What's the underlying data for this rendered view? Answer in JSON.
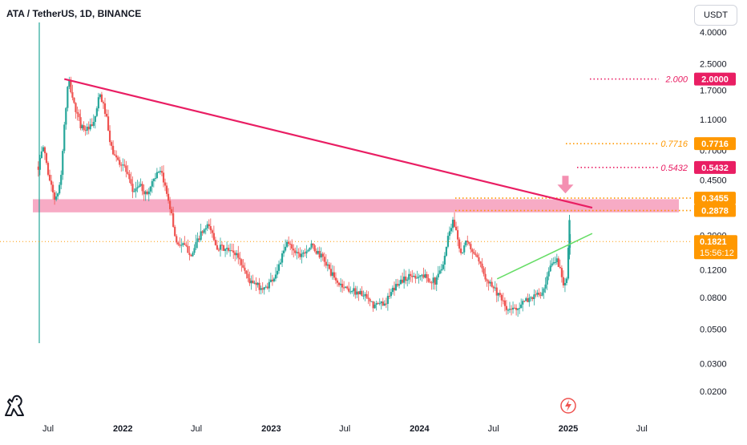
{
  "header": {
    "title": "ATA / TetherUS, 1D, BINANCE"
  },
  "currency_button": {
    "label": "USDT"
  },
  "icons": {
    "logo": "tradingview-dino-icon",
    "event": "lightning-icon",
    "marker": "down-arrow-icon"
  },
  "colors": {
    "up": "#26a69a",
    "down": "#ef5350",
    "trendline": "#e91e63",
    "green_line": "#66dd66",
    "zone": "#f48fb1",
    "orange": "#ff9800",
    "pink_label": "#e91e63",
    "current": "#ff9800"
  },
  "chart_data": {
    "type": "candlestick",
    "symbol": "ATA / TetherUS",
    "interval": "1D",
    "exchange": "BINANCE",
    "y_scale": "log",
    "y_ticks": [
      "4.0000",
      "2.5000",
      "1.7000",
      "1.1000",
      "0.7000",
      "0.4500",
      "0.3000",
      "0.2000",
      "0.1200",
      "0.0800",
      "0.0500",
      "0.0300",
      "0.0200"
    ],
    "x_ticks": [
      "Jul",
      "2022",
      "Jul",
      "2023",
      "Jul",
      "2024",
      "Jul",
      "2025",
      "Jul"
    ],
    "price_path": [
      [
        "2021-06-07",
        0.55
      ],
      [
        "2021-06-20",
        0.75
      ],
      [
        "2021-07-01",
        0.5
      ],
      [
        "2021-07-10",
        0.4
      ],
      [
        "2021-07-20",
        0.33
      ],
      [
        "2021-08-01",
        0.45
      ],
      [
        "2021-08-10",
        1.0
      ],
      [
        "2021-08-20",
        2.0
      ],
      [
        "2021-09-05",
        1.3
      ],
      [
        "2021-09-20",
        1.0
      ],
      [
        "2021-10-05",
        0.95
      ],
      [
        "2021-10-20",
        1.0
      ],
      [
        "2021-11-05",
        1.6
      ],
      [
        "2021-11-20",
        1.2
      ],
      [
        "2021-12-01",
        0.75
      ],
      [
        "2021-12-15",
        0.62
      ],
      [
        "2022-01-05",
        0.55
      ],
      [
        "2022-01-25",
        0.38
      ],
      [
        "2022-02-10",
        0.42
      ],
      [
        "2022-03-01",
        0.36
      ],
      [
        "2022-03-20",
        0.48
      ],
      [
        "2022-04-05",
        0.5
      ],
      [
        "2022-04-25",
        0.33
      ],
      [
        "2022-05-12",
        0.18
      ],
      [
        "2022-06-01",
        0.17
      ],
      [
        "2022-06-20",
        0.15
      ],
      [
        "2022-07-10",
        0.2
      ],
      [
        "2022-08-01",
        0.23
      ],
      [
        "2022-08-20",
        0.17
      ],
      [
        "2022-09-15",
        0.16
      ],
      [
        "2022-10-10",
        0.15
      ],
      [
        "2022-11-10",
        0.1
      ],
      [
        "2022-12-15",
        0.09
      ],
      [
        "2023-01-10",
        0.11
      ],
      [
        "2023-02-10",
        0.18
      ],
      [
        "2023-03-10",
        0.15
      ],
      [
        "2023-04-10",
        0.17
      ],
      [
        "2023-05-10",
        0.14
      ],
      [
        "2023-06-10",
        0.1
      ],
      [
        "2023-07-10",
        0.09
      ],
      [
        "2023-08-10",
        0.085
      ],
      [
        "2023-09-10",
        0.07
      ],
      [
        "2023-10-10",
        0.075
      ],
      [
        "2023-11-10",
        0.1
      ],
      [
        "2023-12-10",
        0.11
      ],
      [
        "2024-01-10",
        0.11
      ],
      [
        "2024-02-10",
        0.1
      ],
      [
        "2024-03-01",
        0.14
      ],
      [
        "2024-03-15",
        0.22
      ],
      [
        "2024-03-25",
        0.25
      ],
      [
        "2024-04-13",
        0.15
      ],
      [
        "2024-04-25",
        0.18
      ],
      [
        "2024-05-10",
        0.16
      ],
      [
        "2024-06-10",
        0.11
      ],
      [
        "2024-07-05",
        0.09
      ],
      [
        "2024-08-05",
        0.065
      ],
      [
        "2024-09-01",
        0.07
      ],
      [
        "2024-10-01",
        0.08
      ],
      [
        "2024-11-01",
        0.085
      ],
      [
        "2024-11-20",
        0.13
      ],
      [
        "2024-12-05",
        0.14
      ],
      [
        "2024-12-20",
        0.1
      ],
      [
        "2024-12-30",
        0.11
      ],
      [
        "2025-01-03",
        0.25
      ],
      [
        "2025-01-06",
        0.1821
      ]
    ],
    "drawings": {
      "trendline": {
        "from": [
          "2021-08-10",
          2.0
        ],
        "to": [
          "2025-03-01",
          0.3
        ]
      },
      "green_trendline": {
        "from": [
          "2024-07-10",
          0.105
        ],
        "to": [
          "2025-03-01",
          0.205
        ]
      },
      "resistance_zone": {
        "low": 0.28,
        "high": 0.34
      },
      "down_arrow": {
        "date": "2024-12-25",
        "price": 0.37
      }
    },
    "levels": [
      {
        "price": 2.0,
        "label": "2.000",
        "badge": "2.0000",
        "color": "#e91e63"
      },
      {
        "price": 0.7716,
        "label": "0.7716",
        "badge": "0.7716",
        "color": "#ff9800"
      },
      {
        "price": 0.5432,
        "label": "0.5432",
        "badge": "0.5432",
        "color": "#e91e63"
      },
      {
        "price": 0.3455,
        "label": "",
        "badge": "0.3455",
        "color": "#ff9800"
      },
      {
        "price": 0.2878,
        "label": "",
        "badge": "0.2878",
        "color": "#ff9800"
      }
    ],
    "current": {
      "price": 0.1821,
      "badge": "0.1821",
      "countdown": "15:56:12"
    }
  }
}
